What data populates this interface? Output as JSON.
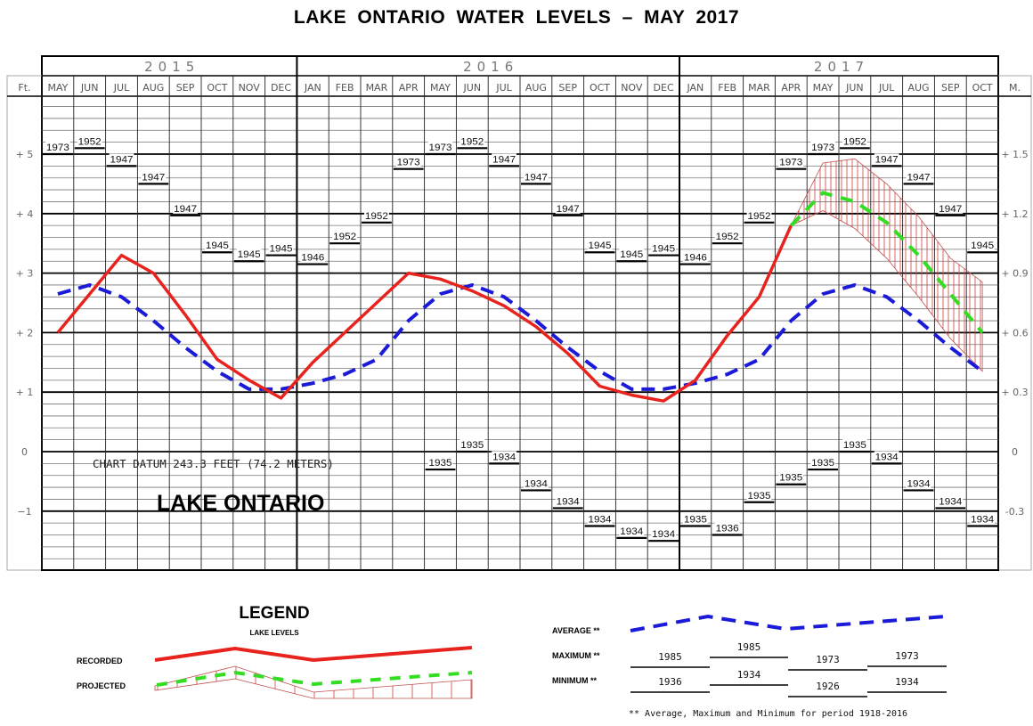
{
  "title": "LAKE ONTARIO  WATER LEVELS – MAY 2017",
  "axes": {
    "left_unit": "Ft.",
    "right_unit": "M.",
    "left_ticks": [
      {
        "label": "+ 5",
        "ft": 5
      },
      {
        "label": "+ 4",
        "ft": 4
      },
      {
        "label": "+ 3",
        "ft": 3
      },
      {
        "label": "+ 2",
        "ft": 2
      },
      {
        "label": "+ 1",
        "ft": 1
      },
      {
        "label": "0",
        "ft": 0
      },
      {
        "label": "−1",
        "ft": -1
      }
    ],
    "right_ticks": [
      {
        "label": "+ 1.5",
        "ft": 5
      },
      {
        "label": "+ 1.2",
        "ft": 4
      },
      {
        "label": "+ 0.9",
        "ft": 3
      },
      {
        "label": "+ 0.6",
        "ft": 2
      },
      {
        "label": "+ 0.3",
        "ft": 1
      },
      {
        "label": "0",
        "ft": 0
      },
      {
        "label": "-0.3",
        "ft": -1
      }
    ]
  },
  "years": [
    {
      "label": "2015",
      "months": 8
    },
    {
      "label": "2016",
      "months": 12
    },
    {
      "label": "2017",
      "months": 10
    }
  ],
  "months": [
    "MAY",
    "JUN",
    "JUL",
    "AUG",
    "SEP",
    "OCT",
    "NOV",
    "DEC",
    "JAN",
    "FEB",
    "MAR",
    "APR",
    "MAY",
    "JUN",
    "JUL",
    "AUG",
    "SEP",
    "OCT",
    "NOV",
    "DEC",
    "JAN",
    "FEB",
    "MAR",
    "APR",
    "MAY",
    "JUN",
    "JUL",
    "AUG",
    "SEP",
    "OCT"
  ],
  "annotations": {
    "chart_datum": "CHART DATUM  243.3 FEET (74.2 METERS)",
    "lake_name": "LAKE ONTARIO"
  },
  "legend": {
    "title": "LEGEND",
    "subtitle": "LAKE LEVELS",
    "recorded_label": "RECORDED",
    "projected_label": "PROJECTED",
    "average_label": "AVERAGE **",
    "maximum_label": "MAXIMUM **",
    "minimum_label": "MINIMUM **",
    "max_years": [
      "1985",
      "1985",
      "1973",
      "1973"
    ],
    "min_years": [
      "1936",
      "1934",
      "1926",
      "1934"
    ],
    "note": "** Average, Maximum and Minimum for period 1918-2016",
    "colors": {
      "recorded": "#e8231e",
      "projected": "#33dd22",
      "average": "#1a1ad8",
      "hatch": "#d04040"
    }
  },
  "chart_data": {
    "type": "line",
    "title": "LAKE ONTARIO WATER LEVELS – MAY 2017",
    "xlabel": "",
    "ylabel": "Ft. (left) / M. (right), relative to chart datum 243.3 ft (74.2 m)",
    "ylim": [
      -2.0,
      6.0
    ],
    "grid": true,
    "legend_position": "bottom",
    "x": [
      "May 2015",
      "Jun 2015",
      "Jul 2015",
      "Aug 2015",
      "Sep 2015",
      "Oct 2015",
      "Nov 2015",
      "Dec 2015",
      "Jan 2016",
      "Feb 2016",
      "Mar 2016",
      "Apr 2016",
      "May 2016",
      "Jun 2016",
      "Jul 2016",
      "Aug 2016",
      "Sep 2016",
      "Oct 2016",
      "Nov 2016",
      "Dec 2016",
      "Jan 2017",
      "Feb 2017",
      "Mar 2017",
      "Apr 2017",
      "May 2017",
      "Jun 2017",
      "Jul 2017",
      "Aug 2017",
      "Sep 2017",
      "Oct 2017"
    ],
    "series": [
      {
        "name": "Recorded",
        "values": [
          2.0,
          2.65,
          3.3,
          3.0,
          2.3,
          1.55,
          1.2,
          0.9,
          1.5,
          2.0,
          2.5,
          3.0,
          2.9,
          2.7,
          2.45,
          2.1,
          1.65,
          1.1,
          0.95,
          0.85,
          1.2,
          1.95,
          2.6,
          3.8,
          null,
          null,
          null,
          null,
          null,
          null
        ]
      },
      {
        "name": "Projected",
        "values": [
          null,
          null,
          null,
          null,
          null,
          null,
          null,
          null,
          null,
          null,
          null,
          null,
          null,
          null,
          null,
          null,
          null,
          null,
          null,
          null,
          null,
          null,
          null,
          3.8,
          4.35,
          4.2,
          3.85,
          3.3,
          2.65,
          2.0
        ]
      },
      {
        "name": "Projected range upper",
        "values": [
          null,
          null,
          null,
          null,
          null,
          null,
          null,
          null,
          null,
          null,
          null,
          null,
          null,
          null,
          null,
          null,
          null,
          null,
          null,
          null,
          null,
          null,
          null,
          3.8,
          4.85,
          4.92,
          4.5,
          3.95,
          3.25,
          2.85
        ]
      },
      {
        "name": "Projected range lower",
        "values": [
          null,
          null,
          null,
          null,
          null,
          null,
          null,
          null,
          null,
          null,
          null,
          null,
          null,
          null,
          null,
          null,
          null,
          null,
          null,
          null,
          null,
          null,
          null,
          3.8,
          4.05,
          3.75,
          3.25,
          2.6,
          1.9,
          1.35
        ]
      },
      {
        "name": "Average (1918-2016)",
        "values": [
          2.65,
          2.8,
          2.6,
          2.2,
          1.75,
          1.35,
          1.05,
          1.05,
          1.15,
          1.3,
          1.55,
          2.2,
          2.65,
          2.8,
          2.6,
          2.2,
          1.75,
          1.35,
          1.05,
          1.05,
          1.15,
          1.3,
          1.55,
          2.2,
          2.65,
          2.8,
          2.6,
          2.2,
          1.75,
          1.35
        ]
      },
      {
        "name": "Maximum (1918-2016)",
        "values": [
          5.0,
          5.1,
          4.8,
          4.5,
          3.97,
          3.35,
          3.2,
          3.3,
          3.15,
          3.5,
          3.85,
          4.75,
          5.0,
          5.1,
          4.8,
          4.5,
          3.97,
          3.35,
          3.2,
          3.3,
          3.15,
          3.5,
          3.85,
          4.75,
          5.0,
          5.1,
          4.8,
          4.5,
          3.97,
          3.35
        ]
      },
      {
        "name": "Minimum (1918-2016)",
        "values": [
          null,
          null,
          null,
          null,
          null,
          null,
          null,
          null,
          null,
          null,
          null,
          null,
          -0.3,
          0.0,
          -0.2,
          -0.65,
          -0.95,
          -1.25,
          -1.45,
          -1.5,
          -1.25,
          -1.4,
          -0.85,
          -0.55,
          -0.3,
          0.0,
          -0.2,
          -0.65,
          -0.95,
          -1.25
        ]
      }
    ],
    "max_record_years": [
      "1973",
      "1952",
      "1947",
      "1947",
      "1947",
      "1945",
      "1945",
      "1945",
      "1946",
      "1952",
      "1952",
      "1973",
      "1973",
      "1952",
      "1947",
      "1947",
      "1947",
      "1945",
      "1945",
      "1945",
      "1946",
      "1952",
      "1952",
      "1973",
      "1973",
      "1952",
      "1947",
      "1947",
      "1947",
      "1945"
    ],
    "min_record_years": [
      null,
      null,
      null,
      null,
      null,
      null,
      null,
      null,
      null,
      null,
      null,
      null,
      "1935",
      "1935",
      "1934",
      "1934",
      "1934",
      "1934",
      "1934",
      "1934",
      "1935",
      "1936",
      "1935",
      "1935",
      "1935",
      "1935",
      "1934",
      "1934",
      "1934",
      "1934"
    ]
  }
}
